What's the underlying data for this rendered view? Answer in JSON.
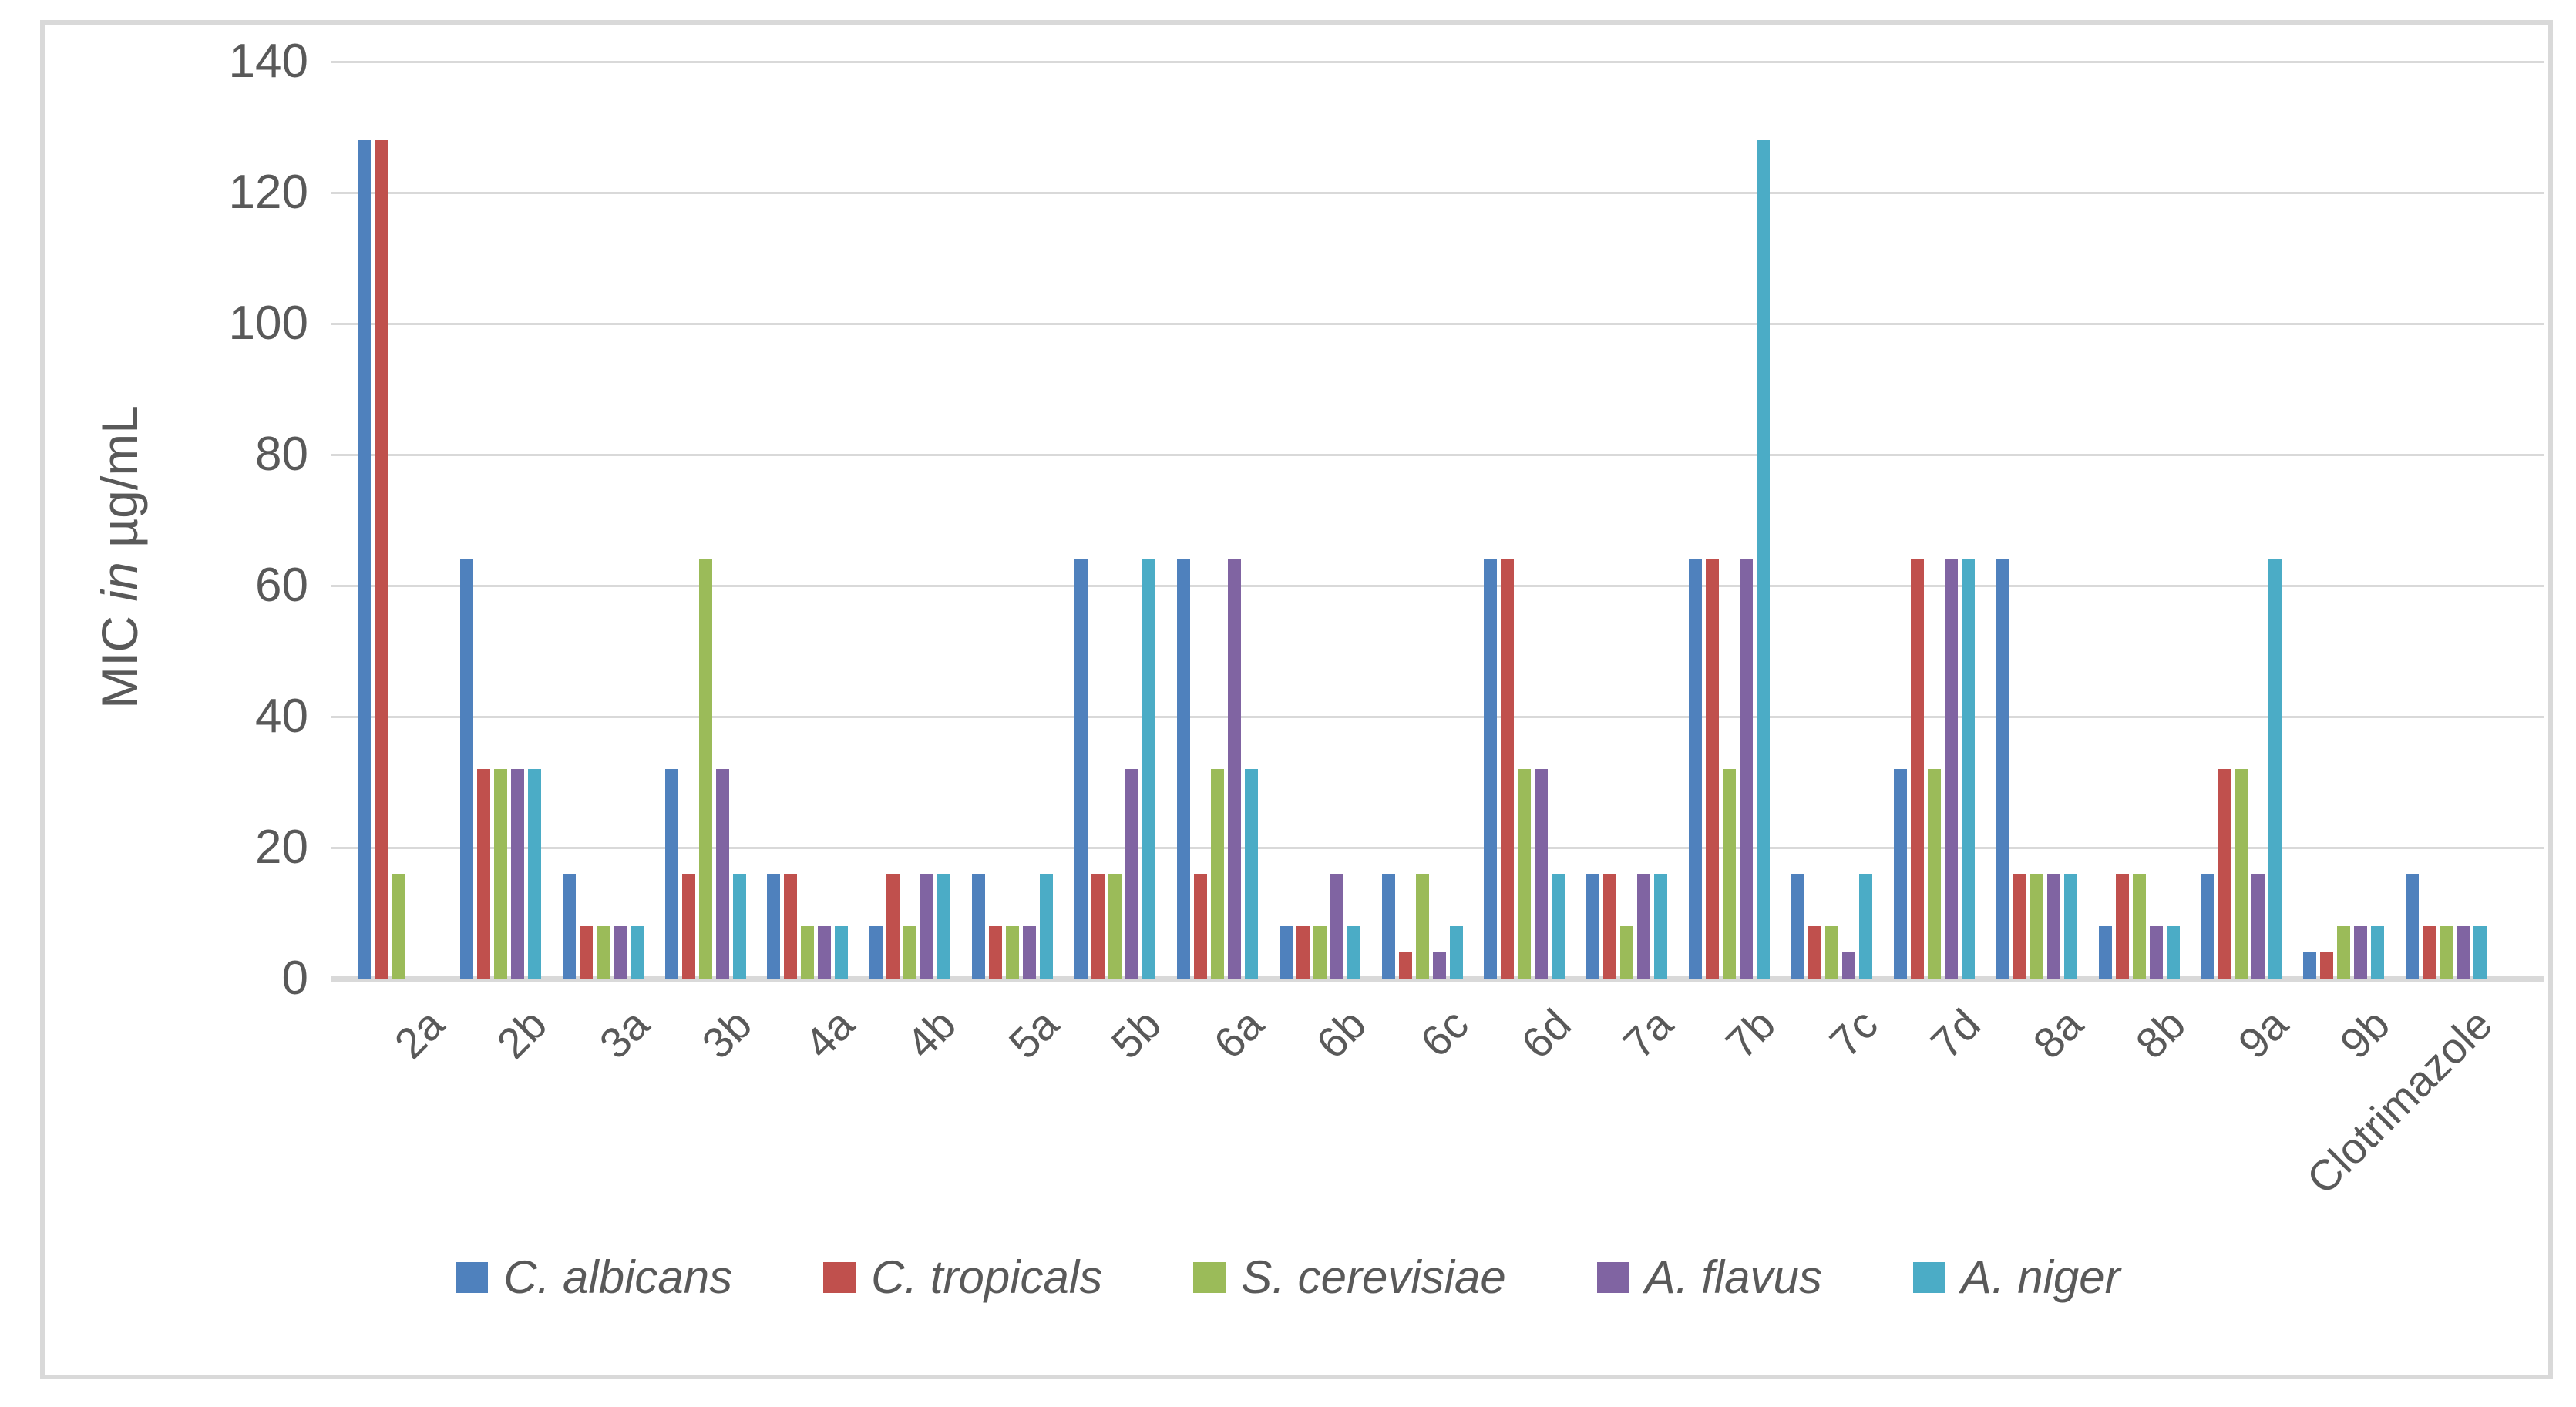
{
  "chart_data": {
    "type": "bar",
    "title": "",
    "xlabel": "",
    "ylabel": "MIC in µg/mL",
    "ylabel_parts": {
      "prefix": "MIC ",
      "italic": "in",
      "suffix": " µg/mL"
    },
    "ylim": [
      0,
      140
    ],
    "yticks": [
      0,
      20,
      40,
      60,
      80,
      100,
      120,
      140
    ],
    "grid": "horizontal",
    "legend_position": "bottom-center",
    "categories": [
      "2a",
      "2b",
      "3a",
      "3b",
      "4a",
      "4b",
      "5a",
      "5b",
      "6a",
      "6b",
      "6c",
      "6d",
      "7a",
      "7b",
      "7c",
      "7d",
      "8a",
      "8b",
      "9a",
      "9b",
      "Clotrimazole"
    ],
    "series": [
      {
        "name": "C. albicans",
        "color": "#4F81BD",
        "values": [
          128,
          64,
          16,
          32,
          16,
          8,
          16,
          64,
          64,
          8,
          16,
          64,
          16,
          64,
          16,
          32,
          64,
          8,
          16,
          4,
          16
        ]
      },
      {
        "name": "C. tropicals",
        "color": "#C0504D",
        "values": [
          128,
          32,
          8,
          16,
          16,
          16,
          8,
          16,
          16,
          8,
          4,
          64,
          16,
          64,
          8,
          64,
          16,
          16,
          32,
          4,
          8
        ]
      },
      {
        "name": "S. cerevisiae",
        "color": "#9BBB59",
        "values": [
          16,
          32,
          8,
          64,
          8,
          8,
          8,
          16,
          32,
          8,
          16,
          32,
          8,
          32,
          8,
          32,
          16,
          16,
          32,
          8,
          8
        ]
      },
      {
        "name": "A. flavus",
        "color": "#8064A2",
        "values": [
          0,
          32,
          8,
          32,
          8,
          16,
          8,
          32,
          64,
          16,
          4,
          32,
          16,
          64,
          4,
          64,
          16,
          8,
          16,
          8,
          8
        ]
      },
      {
        "name": "A. niger",
        "color": "#4BACC6",
        "values": [
          0,
          32,
          8,
          16,
          8,
          16,
          16,
          64,
          32,
          8,
          8,
          16,
          16,
          128,
          16,
          64,
          16,
          8,
          64,
          8,
          8
        ]
      }
    ]
  },
  "colors": {
    "text": "#595959",
    "gridline": "#D9D9D9",
    "frame_border": "#D9D9D9",
    "background": "#FFFFFF"
  }
}
